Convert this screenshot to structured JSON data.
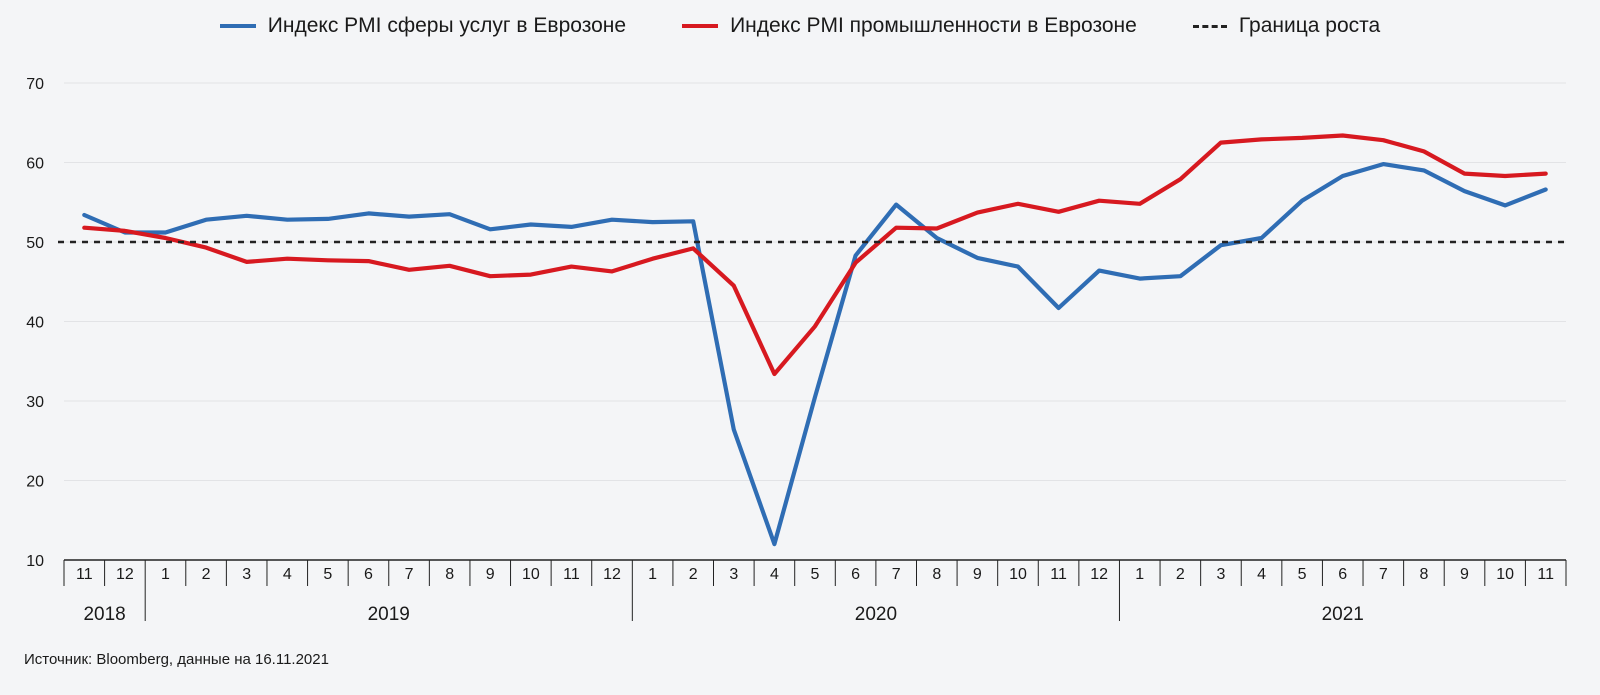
{
  "chart_data": {
    "type": "line",
    "x": [
      "2018-11",
      "2018-12",
      "2019-01",
      "2019-02",
      "2019-03",
      "2019-04",
      "2019-05",
      "2019-06",
      "2019-07",
      "2019-08",
      "2019-09",
      "2019-10",
      "2019-11",
      "2019-12",
      "2020-01",
      "2020-02",
      "2020-03",
      "2020-04",
      "2020-05",
      "2020-06",
      "2020-07",
      "2020-08",
      "2020-09",
      "2020-10",
      "2020-11",
      "2020-12",
      "2021-01",
      "2021-02",
      "2021-03",
      "2021-04",
      "2021-05",
      "2021-06",
      "2021-07",
      "2021-08",
      "2021-09",
      "2021-10",
      "2021-11"
    ],
    "month_labels": [
      "11",
      "12",
      "1",
      "2",
      "3",
      "4",
      "5",
      "6",
      "7",
      "8",
      "9",
      "10",
      "11",
      "12",
      "1",
      "2",
      "3",
      "4",
      "5",
      "6",
      "7",
      "8",
      "9",
      "10",
      "11",
      "12",
      "1",
      "2",
      "3",
      "4",
      "5",
      "6",
      "7",
      "8",
      "9",
      "10",
      "11"
    ],
    "year_groups": [
      {
        "label": "2018",
        "start": 0,
        "end": 1
      },
      {
        "label": "2019",
        "start": 2,
        "end": 13
      },
      {
        "label": "2020",
        "start": 14,
        "end": 25
      },
      {
        "label": "2021",
        "start": 26,
        "end": 36
      }
    ],
    "series": [
      {
        "name": "Индекс PMI сферы услуг в Еврозоне",
        "color": "#2f6db4",
        "values": [
          53.4,
          51.2,
          51.2,
          52.8,
          53.3,
          52.8,
          52.9,
          53.6,
          53.2,
          53.5,
          51.6,
          52.2,
          51.9,
          52.8,
          52.5,
          52.6,
          26.4,
          12.0,
          30.5,
          48.3,
          54.7,
          50.5,
          48.0,
          46.9,
          41.7,
          46.4,
          45.4,
          45.7,
          49.6,
          50.5,
          55.2,
          58.3,
          59.8,
          59.0,
          56.4,
          54.6,
          56.6
        ]
      },
      {
        "name": "Индекс PMI промышленности в Еврозоне",
        "color": "#d71920",
        "values": [
          51.8,
          51.4,
          50.5,
          49.3,
          47.5,
          47.9,
          47.7,
          47.6,
          46.5,
          47.0,
          45.7,
          45.9,
          46.9,
          46.3,
          47.9,
          49.2,
          44.5,
          33.4,
          39.4,
          47.4,
          51.8,
          51.7,
          53.7,
          54.8,
          53.8,
          55.2,
          54.8,
          57.9,
          62.5,
          62.9,
          63.1,
          63.4,
          62.8,
          61.4,
          58.6,
          58.3,
          58.6
        ]
      }
    ],
    "reference_line": {
      "name": "Граница роста",
      "value": 50,
      "style": "dashed",
      "color": "#222222"
    },
    "y_ticks": [
      10,
      20,
      30,
      40,
      50,
      60,
      70
    ],
    "ylim": [
      10,
      70
    ],
    "grid": true,
    "legend_position": "top-center"
  },
  "legend": {
    "services": "Индекс PMI сферы услуг в Еврозоне",
    "industry": "Индекс PMI промышленности в Еврозоне",
    "growth": "Граница роста"
  },
  "source": "Источник: Bloomberg, данные на 16.11.2021",
  "colors": {
    "services": "#2f6db4",
    "industry": "#d71920",
    "grid": "#e2e3e6",
    "axis": "#222222"
  }
}
